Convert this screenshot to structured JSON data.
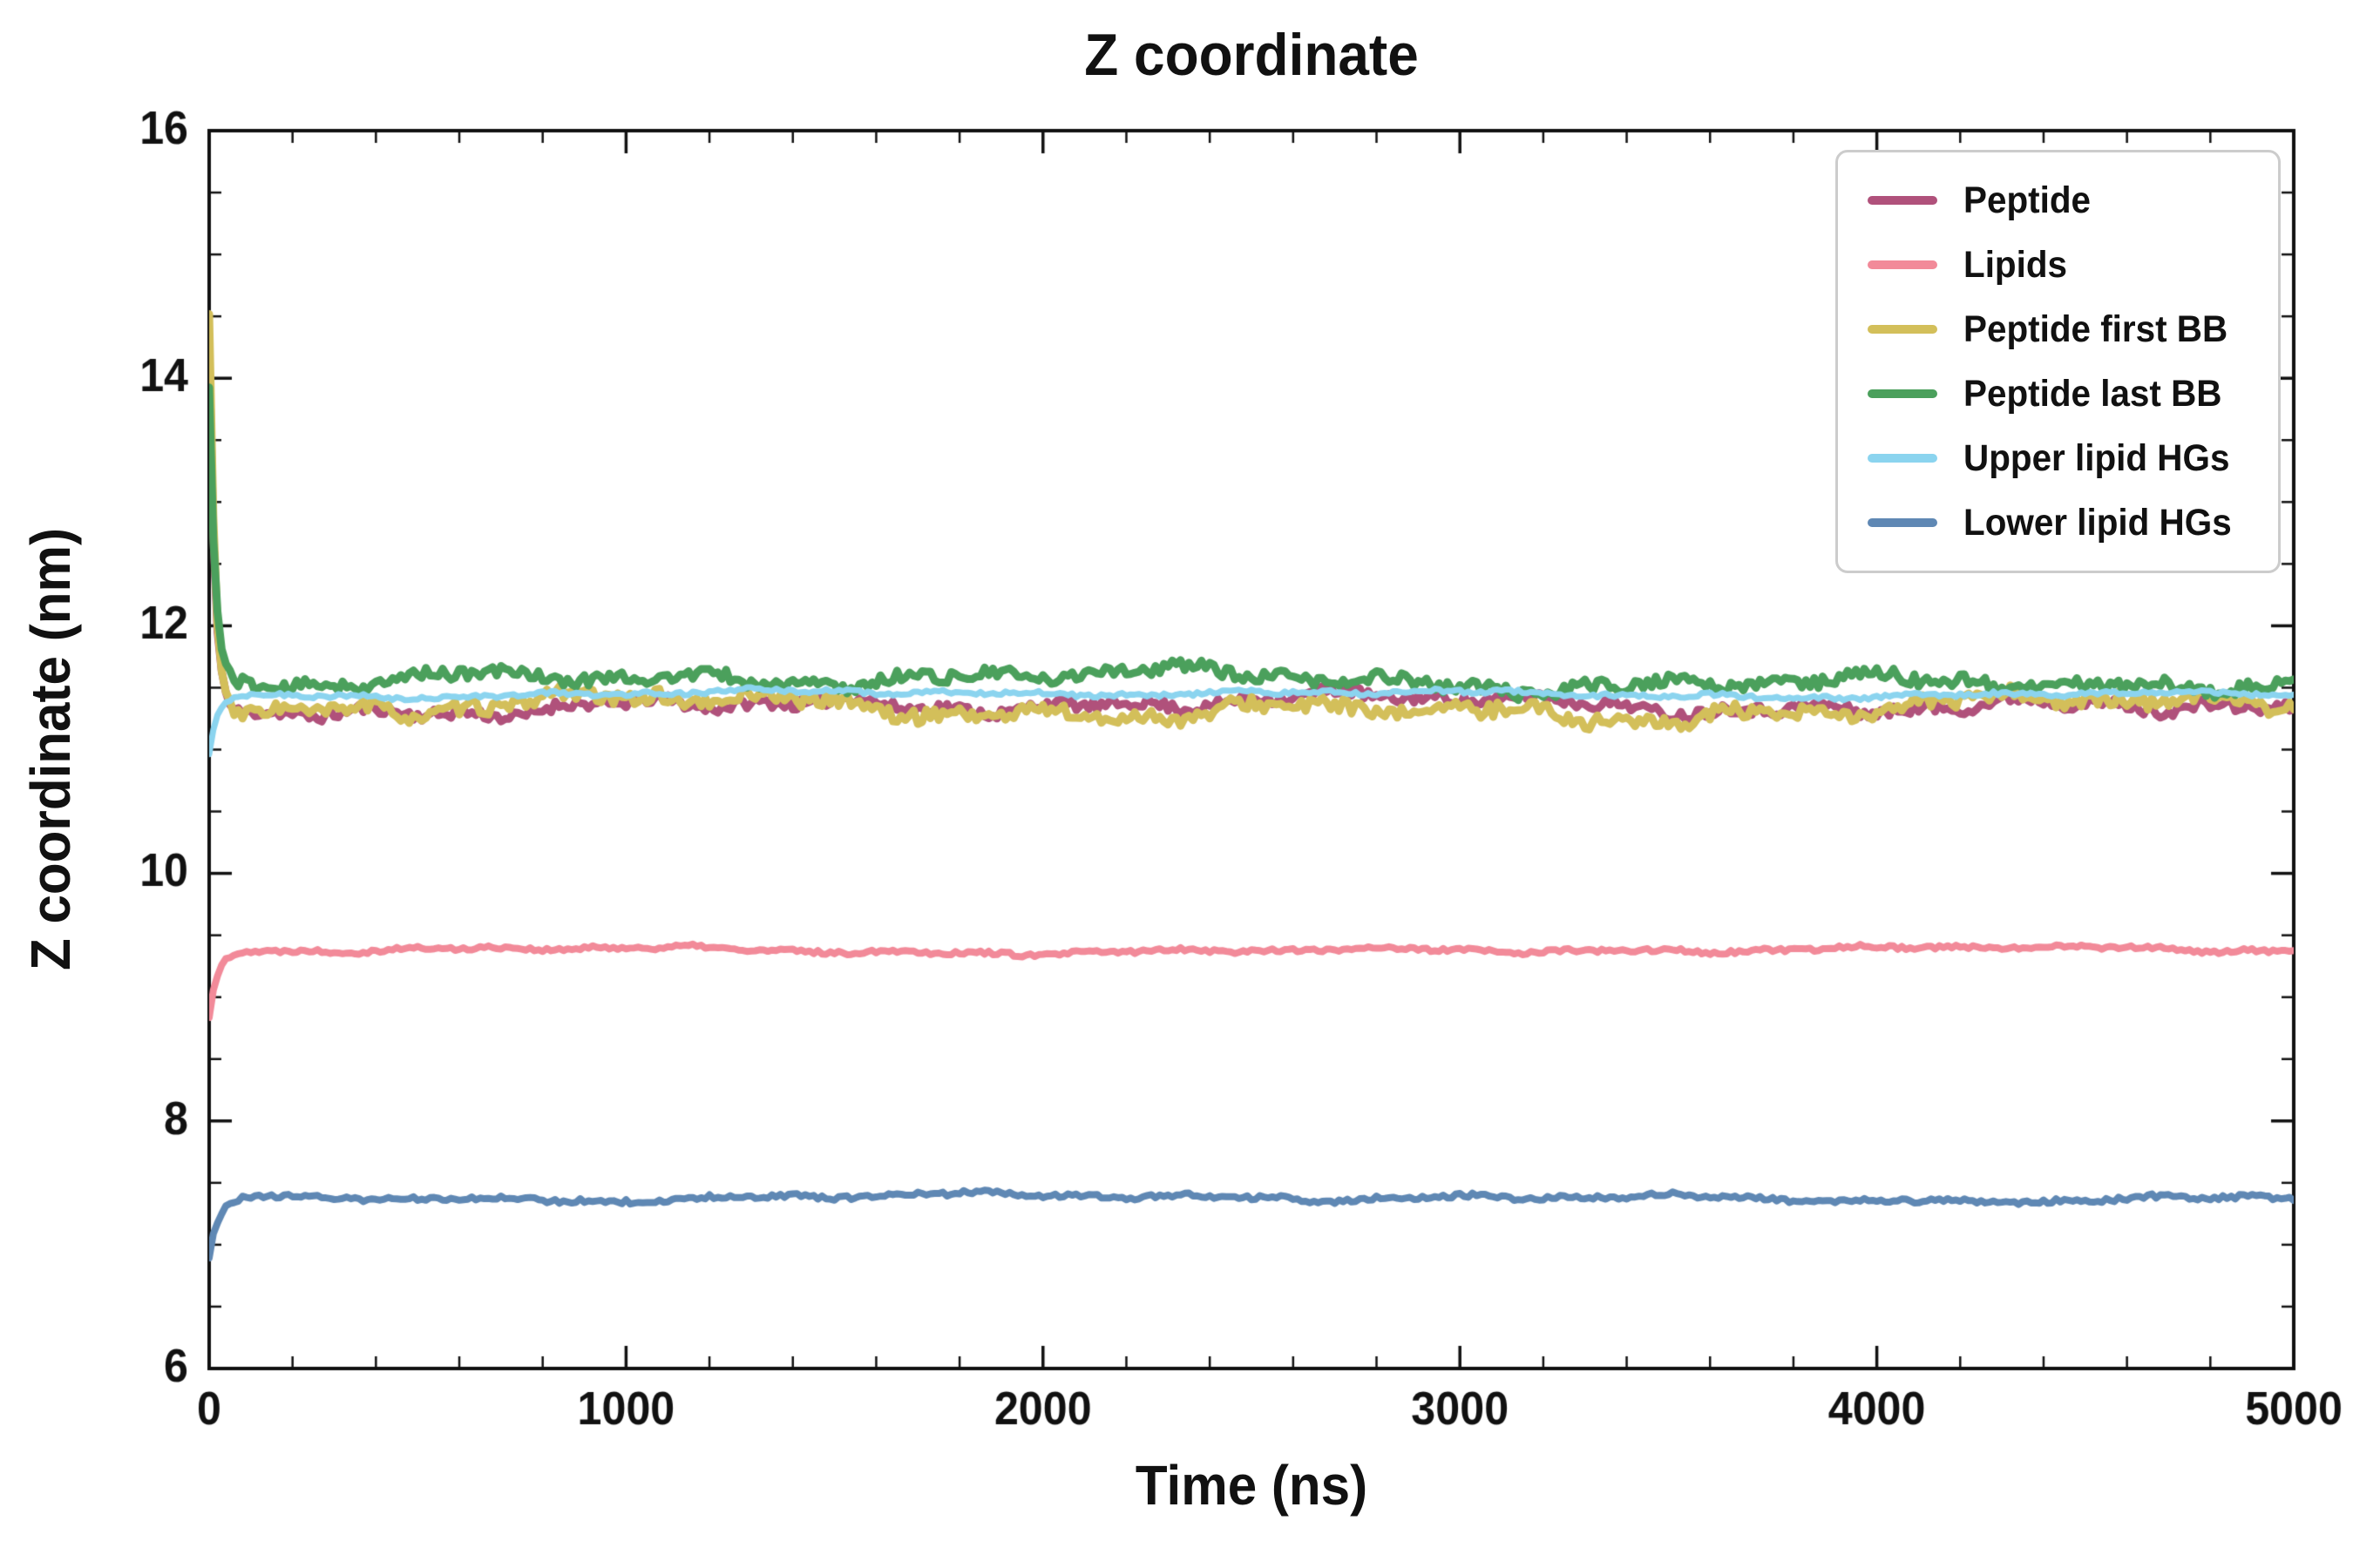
{
  "chart_data": {
    "type": "line",
    "title": "Z coordinate",
    "xlabel": "Time (ns)",
    "ylabel": "Z coordinate (nm)",
    "xlim": [
      0,
      5000
    ],
    "ylim": [
      6,
      16
    ],
    "xticks": [
      0,
      1000,
      2000,
      3000,
      4000,
      5000
    ],
    "yticks": [
      6,
      8,
      10,
      12,
      14,
      16
    ],
    "x_minor_step": 200,
    "y_minor_step": 0.5,
    "grid": false,
    "legend_position": "upper right",
    "sample_step_ns": 10,
    "frame_color": "#111111",
    "series": [
      {
        "name": "Peptide",
        "color": "#b0517b",
        "linewidth": 9,
        "start_value": 14.25,
        "plateau": 11.36,
        "settle_tau_ns": 14,
        "noise_amp": 0.1,
        "seed": 11
      },
      {
        "name": "Lipids",
        "color": "#f28a99",
        "linewidth": 8,
        "start_value": 8.82,
        "plateau": 9.38,
        "settle_tau_ns": 22,
        "noise_amp": 0.035,
        "seed": 22
      },
      {
        "name": "Peptide first BB",
        "color": "#d3bf5a",
        "linewidth": 9,
        "start_value": 14.6,
        "plateau": 11.33,
        "settle_tau_ns": 14,
        "noise_amp": 0.13,
        "seed": 33
      },
      {
        "name": "Peptide last BB",
        "color": "#4ba05c",
        "linewidth": 9,
        "start_value": 13.95,
        "plateau": 11.56,
        "settle_tau_ns": 14,
        "noise_amp": 0.11,
        "seed": 44
      },
      {
        "name": "Upper lipid HGs",
        "color": "#8bd4ef",
        "linewidth": 7,
        "start_value": 11.0,
        "plateau": 11.45,
        "settle_tau_ns": 18,
        "noise_amp": 0.035,
        "seed": 55
      },
      {
        "name": "Lower lipid HGs",
        "color": "#5f88b4",
        "linewidth": 8,
        "start_value": 6.88,
        "plateau": 7.38,
        "settle_tau_ns": 22,
        "noise_amp": 0.04,
        "seed": 66
      }
    ]
  }
}
